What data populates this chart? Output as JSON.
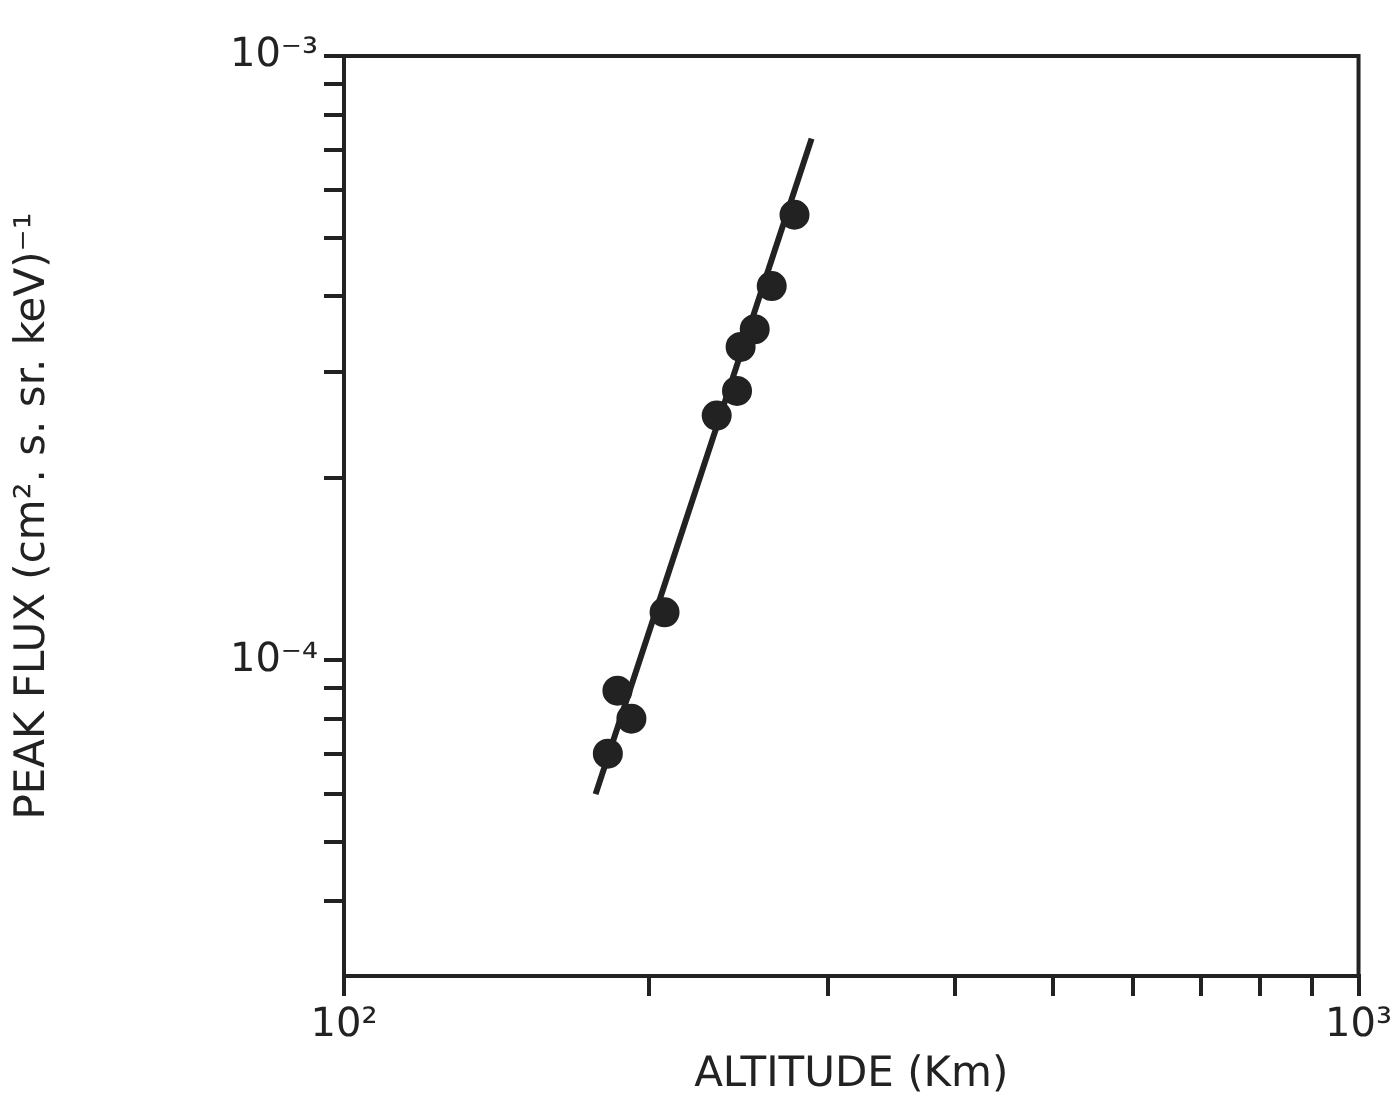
{
  "chart_data": {
    "type": "scatter",
    "xlabel": "ALTITUDE (Km)",
    "ylabel": "PEAK FLUX (cm². s. sr. keV)⁻¹",
    "log": "xy",
    "xlim": [
      100,
      1000
    ],
    "ylim": [
      3e-05,
      0.001
    ],
    "xticks": [
      {
        "value": 100,
        "label": "10²"
      },
      {
        "value": 200,
        "label": null
      },
      {
        "value": 300,
        "label": null
      },
      {
        "value": 400,
        "label": null
      },
      {
        "value": 500,
        "label": null
      },
      {
        "value": 600,
        "label": null
      },
      {
        "value": 700,
        "label": null
      },
      {
        "value": 800,
        "label": null
      },
      {
        "value": 900,
        "label": null
      },
      {
        "value": 1000,
        "label": "10³"
      }
    ],
    "yticks": [
      {
        "value": 4e-05,
        "label": null
      },
      {
        "value": 5e-05,
        "label": null
      },
      {
        "value": 6e-05,
        "label": null
      },
      {
        "value": 7e-05,
        "label": null
      },
      {
        "value": 8e-05,
        "label": null
      },
      {
        "value": 9e-05,
        "label": null
      },
      {
        "value": 0.0001,
        "label": "10⁻⁴"
      },
      {
        "value": 0.0002,
        "label": null
      },
      {
        "value": 0.0003,
        "label": null
      },
      {
        "value": 0.0004,
        "label": null
      },
      {
        "value": 0.0005,
        "label": null
      },
      {
        "value": 0.0006,
        "label": null
      },
      {
        "value": 0.0007,
        "label": null
      },
      {
        "value": 0.0008,
        "label": null
      },
      {
        "value": 0.0009,
        "label": null
      },
      {
        "value": 0.001,
        "label": "10⁻³"
      }
    ],
    "series": [
      {
        "type": "scatter",
        "marker": "circle",
        "color": "#222222",
        "x": [
          182,
          186,
          192,
          207,
          233,
          244,
          246,
          254,
          264,
          278
        ],
        "values": [
          7e-05,
          8.9e-05,
          8e-05,
          0.00012,
          0.000254,
          0.000279,
          0.00033,
          0.000353,
          0.000416,
          0.000546
        ]
      },
      {
        "type": "line",
        "marker": "none",
        "color": "#222222",
        "x": [
          177,
          289
        ],
        "values": [
          6e-05,
          0.00073
        ]
      }
    ]
  }
}
